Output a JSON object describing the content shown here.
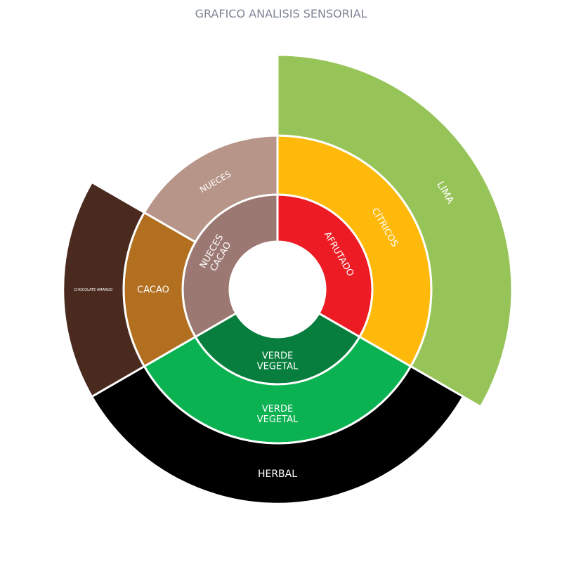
{
  "chart_data": {
    "type": "sunburst",
    "title": "GRAFICO ANALISIS SENSORIAL",
    "rings": [
      {
        "level": "inner",
        "segments": [
          {
            "label": "AFRUTADO",
            "start_deg": 0,
            "end_deg": 120,
            "color": "#ed1c24"
          },
          {
            "label": "VERDE\nVEGETAL",
            "start_deg": 120,
            "end_deg": 240,
            "color": "#077e3d"
          },
          {
            "label": "NUECES\nCACAO",
            "start_deg": 240,
            "end_deg": 360,
            "color": "#9c7873"
          }
        ]
      },
      {
        "level": "middle",
        "segments": [
          {
            "label": "CÍTRICOS",
            "parent": "AFRUTADO",
            "start_deg": 0,
            "end_deg": 120,
            "color": "#ffb90a"
          },
          {
            "label": "VERDE\nVEGETAL",
            "parent": "VERDE VEGETAL",
            "start_deg": 120,
            "end_deg": 240,
            "color": "#0bb252"
          },
          {
            "label": "CACAO",
            "parent": "NUECES CACAO",
            "start_deg": 240,
            "end_deg": 300,
            "color": "#b26f20"
          },
          {
            "label": "NUECES",
            "parent": "NUECES CACAO",
            "start_deg": 300,
            "end_deg": 360,
            "color": "#b89589"
          }
        ]
      },
      {
        "level": "outer",
        "segments": [
          {
            "label": "LIMA",
            "parent": "CÍTRICOS",
            "start_deg": 0,
            "end_deg": 120,
            "value": 1.0,
            "color": "#97c459"
          },
          {
            "label": "HERBAL",
            "parent": "VERDE VEGETAL",
            "start_deg": 120,
            "end_deg": 240,
            "value": 0.75,
            "color": "#000000"
          },
          {
            "label": "CHOCOLATE AMARGO",
            "parent": "CACAO",
            "start_deg": 240,
            "end_deg": 300,
            "value": 0.75,
            "color": "#4a2a1e"
          }
        ]
      }
    ]
  }
}
